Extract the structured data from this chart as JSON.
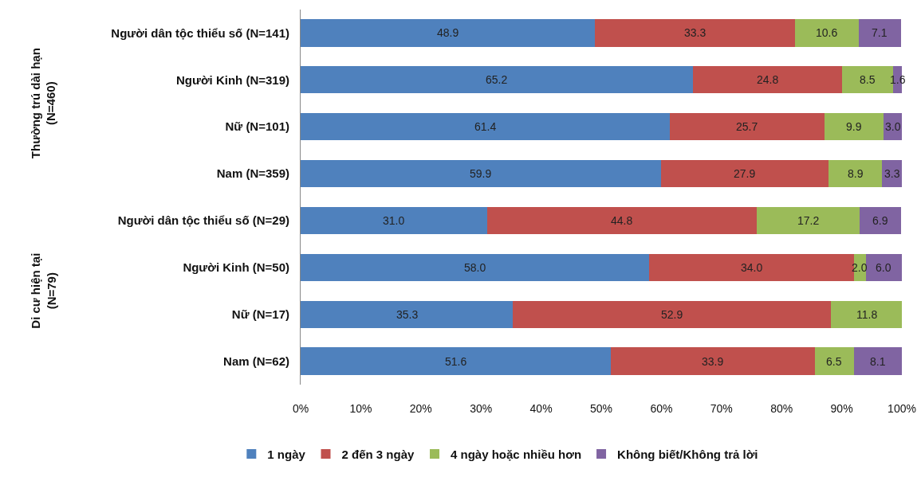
{
  "chart_data": {
    "type": "bar",
    "orientation": "horizontal",
    "stacked": true,
    "data_labels": true,
    "legend": "bottom",
    "grid": false,
    "categories": [
      "Người dân tộc thiểu số (N=141)",
      "Người Kinh (N=319)",
      "Nữ (N=101)",
      "Nam (N=359)",
      "Người dân tộc thiểu số (N=29)",
      "Người Kinh (N=50)",
      "Nữ (N=17)",
      "Nam (N=62)"
    ],
    "xlim": [
      0,
      100
    ],
    "xticks": [
      {
        "value": 0,
        "label": "0%"
      },
      {
        "value": 10,
        "label": "10%"
      },
      {
        "value": 20,
        "label": "20%"
      },
      {
        "value": 30,
        "label": "30%"
      },
      {
        "value": 40,
        "label": "40%"
      },
      {
        "value": 50,
        "label": "50%"
      },
      {
        "value": 60,
        "label": "60%"
      },
      {
        "value": 70,
        "label": "70%"
      },
      {
        "value": 80,
        "label": "80%"
      },
      {
        "value": 90,
        "label": "90%"
      },
      {
        "value": 100,
        "label": "100%"
      }
    ],
    "series": [
      {
        "name": "1 ngày",
        "color": "#4f81bd",
        "values": [
          48.9,
          65.2,
          61.4,
          59.9,
          31.0,
          58.0,
          35.3,
          51.6
        ],
        "value_labels": [
          "48.9",
          "65.2",
          "61.4",
          "59.9",
          "31.0",
          "58.0",
          "35.3",
          "51.6"
        ]
      },
      {
        "name": "2 đến 3 ngày",
        "color": "#c0504d",
        "values": [
          33.3,
          24.8,
          25.7,
          27.9,
          44.8,
          34.0,
          52.9,
          33.9
        ],
        "value_labels": [
          "33.3",
          "24.8",
          "25.7",
          "27.9",
          "44.8",
          "34.0",
          "52.9",
          "33.9"
        ]
      },
      {
        "name": "4 ngày hoặc nhiều hơn",
        "color": "#9bbb59",
        "values": [
          10.6,
          8.5,
          9.9,
          8.9,
          17.2,
          2.0,
          11.8,
          6.5
        ],
        "value_labels": [
          "10.6",
          "8.5",
          "9.9",
          "8.9",
          "17.2",
          "2.0",
          "11.8",
          "6.5"
        ]
      },
      {
        "name": "Không biết/Không trả lời",
        "color": "#8064a2",
        "values": [
          7.1,
          1.6,
          3.0,
          3.3,
          6.9,
          6.0,
          null,
          8.1
        ],
        "value_labels": [
          "7.1",
          "1.6",
          "3.0",
          "3.3",
          "6.9",
          "6.0",
          null,
          "8.1"
        ]
      }
    ],
    "annotations": [
      "Thường trú dài hạn\n(N=460)",
      "Di cư hiện tại\n(N=79)"
    ]
  }
}
